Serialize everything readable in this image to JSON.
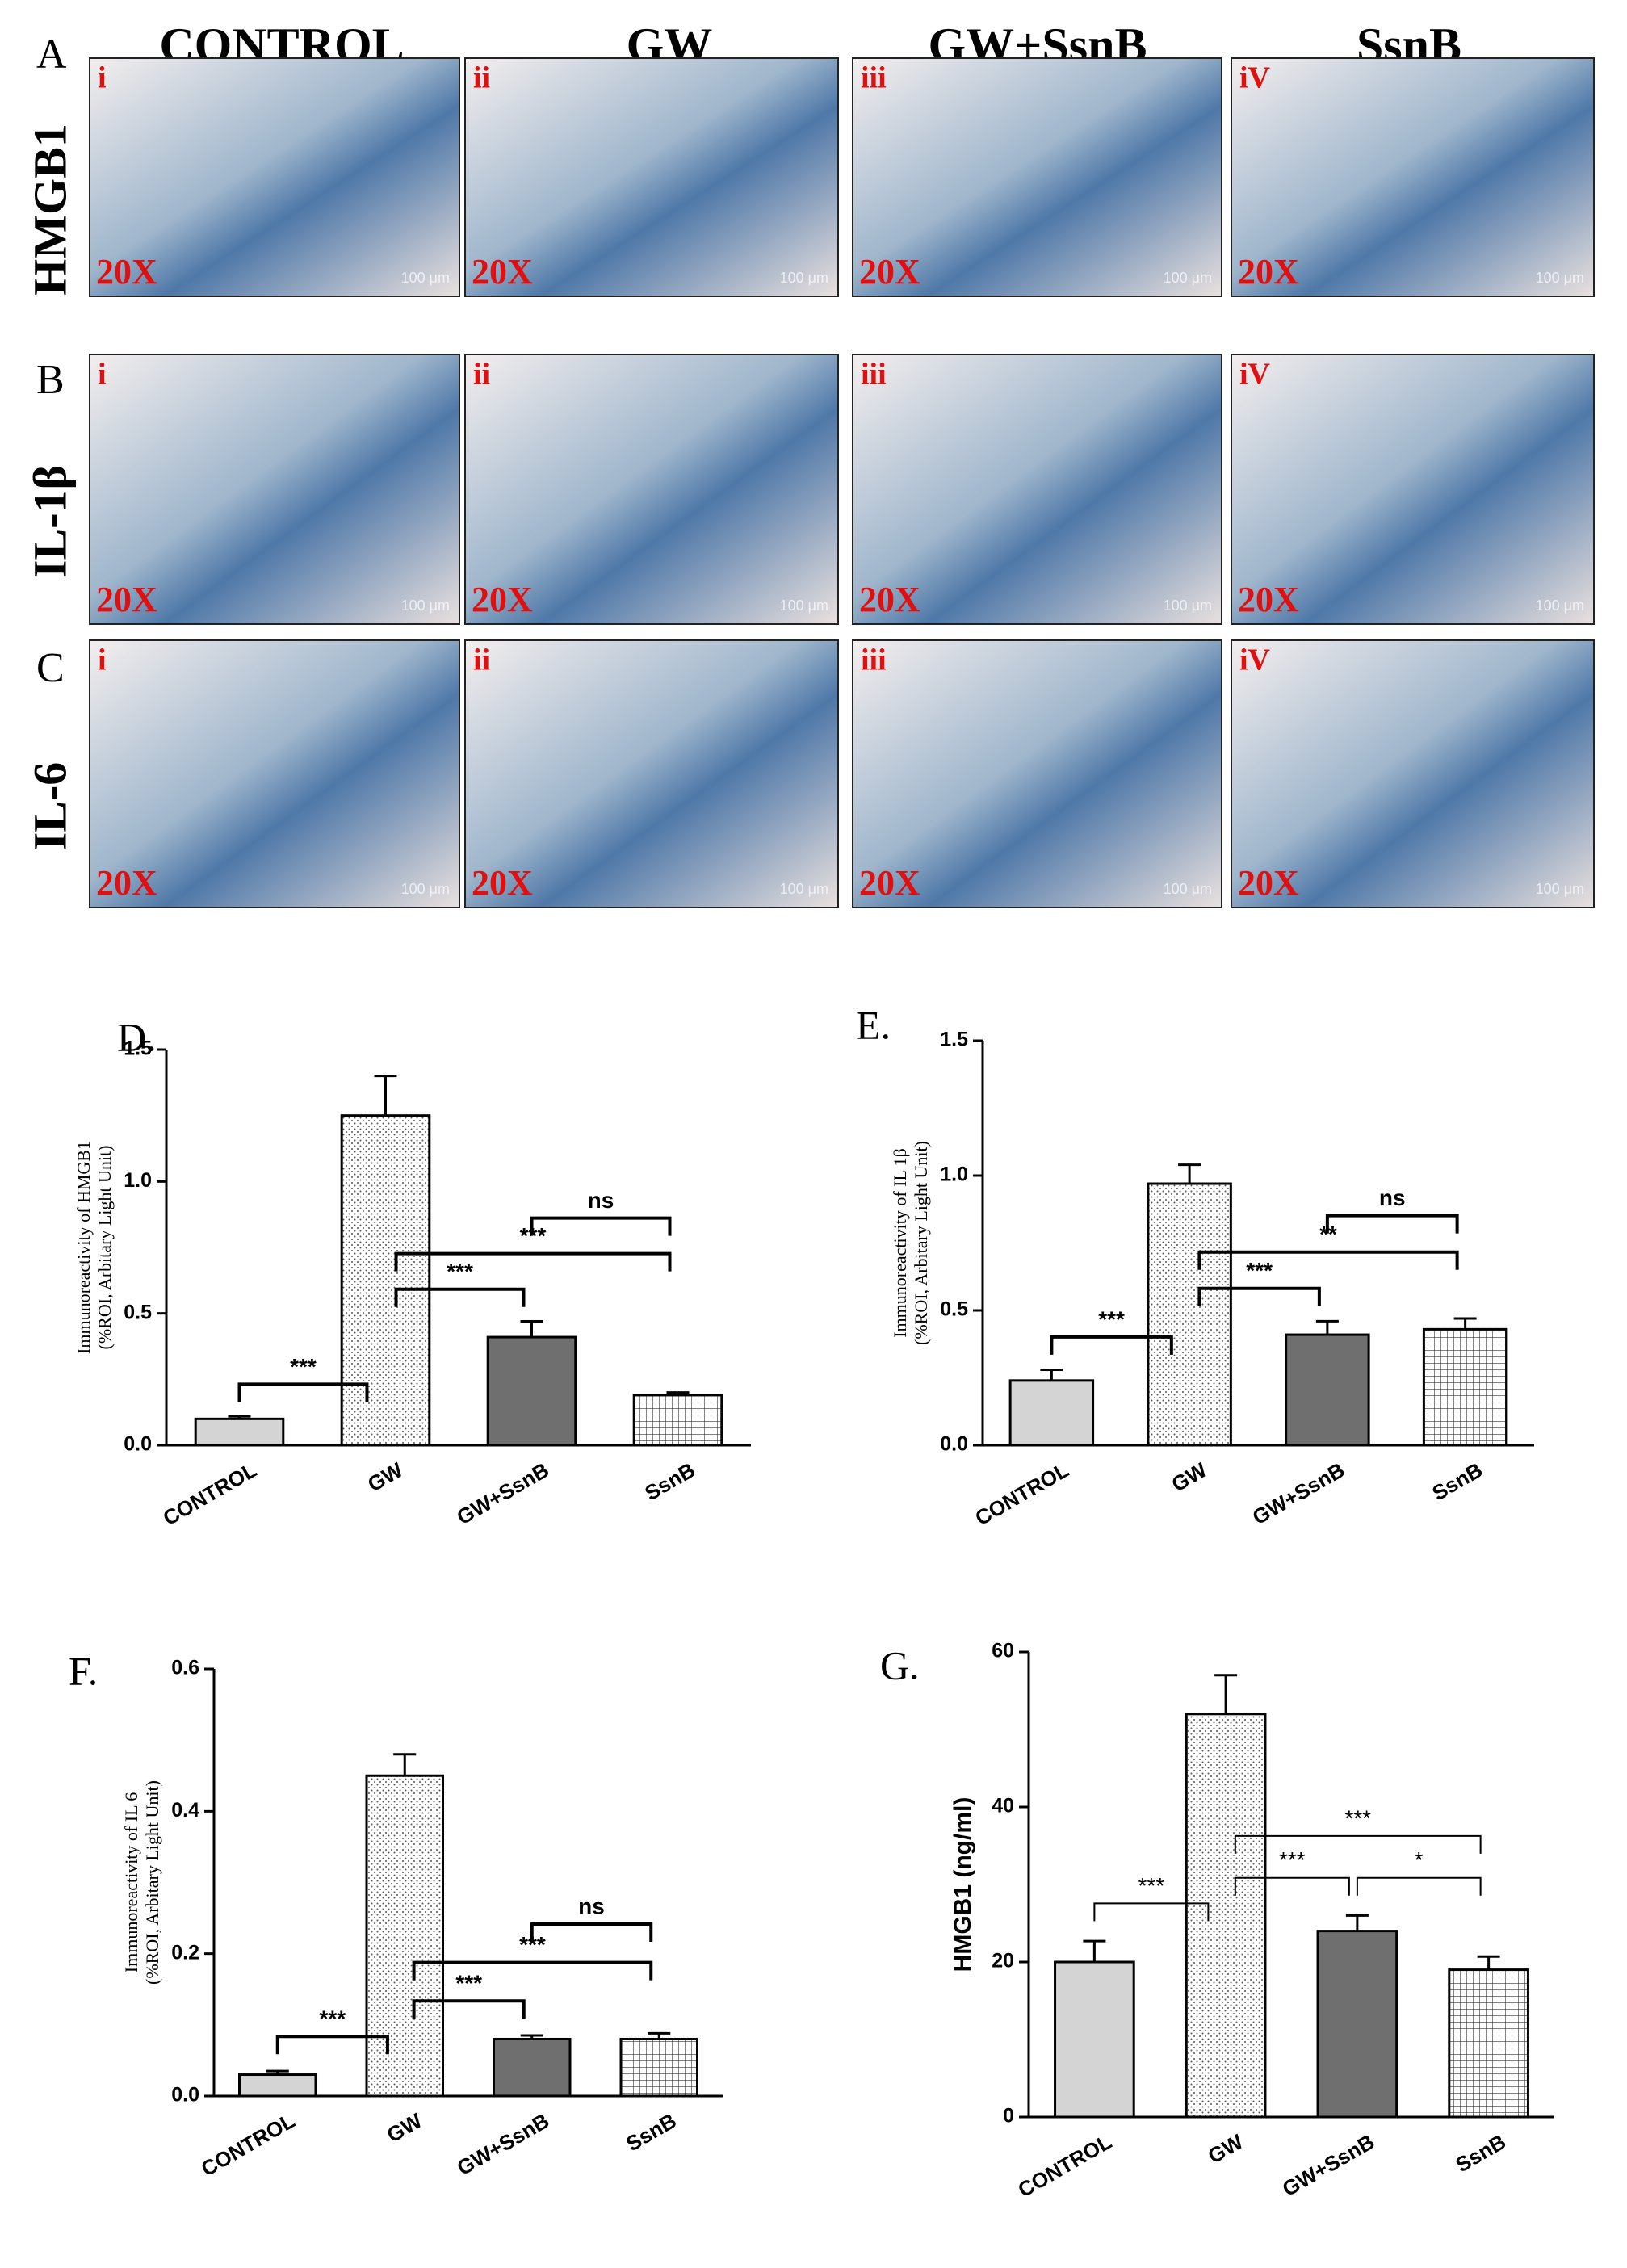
{
  "micrographs": {
    "panel_labels": [
      "A",
      "B",
      "C"
    ],
    "column_titles": [
      "CONTROL",
      "GW",
      "GW+SsnB",
      "SsnB"
    ],
    "row_titles": [
      "HMGB1",
      "IL-1β",
      "IL-6"
    ],
    "sublabels": [
      [
        "i",
        "ii",
        "iii",
        "iV"
      ],
      [
        "i",
        "ii",
        "iii",
        "iV"
      ],
      [
        "i",
        "ii",
        "iii",
        "iV"
      ]
    ],
    "magnification": "20X",
    "scale_bar": "100 μm"
  },
  "chart_data": [
    {
      "type": "bar",
      "panel_label": "D.",
      "ylabel": [
        "Immunoreactivity of HMGB1",
        "(%ROI, Arbitary Light Unit)"
      ],
      "categories": [
        "CONTROL",
        "GW",
        "GW+SsnB",
        "SsnB"
      ],
      "values": [
        0.1,
        1.25,
        0.41,
        0.19
      ],
      "errors": [
        0.01,
        0.15,
        0.06,
        0.01
      ],
      "colors": [
        "#d4d4d4",
        "#ffffff",
        "#6f6f6f",
        "#ffffff"
      ],
      "patterns": [
        "solid",
        "dots",
        "solid",
        "grid"
      ],
      "ylim": [
        0,
        1.5
      ],
      "yticks": [
        {
          "value": 0,
          "label": "0.0"
        },
        {
          "value": 0.5,
          "label": "0.5"
        },
        {
          "value": 1,
          "label": "1.0"
        },
        {
          "value": 1.5,
          "label": "1.5"
        }
      ],
      "significance": [
        {
          "pair": [
            0,
            1
          ],
          "label": "***"
        },
        {
          "pair": [
            1,
            2
          ],
          "label": "***"
        },
        {
          "pair": [
            1,
            3
          ],
          "label": "***"
        },
        {
          "pair": [
            2,
            3
          ],
          "label": "ns"
        }
      ]
    },
    {
      "type": "bar",
      "panel_label": "E.",
      "ylabel": [
        "Immunoreactivity of  IL 1β",
        "(%ROI, Arbitary Light Unit)"
      ],
      "categories": [
        "CONTROL",
        "GW",
        "GW+SsnB",
        "SsnB"
      ],
      "values": [
        0.24,
        0.97,
        0.41,
        0.43
      ],
      "errors": [
        0.04,
        0.07,
        0.05,
        0.04
      ],
      "colors": [
        "#d4d4d4",
        "#ffffff",
        "#6f6f6f",
        "#ffffff"
      ],
      "patterns": [
        "solid",
        "dots",
        "solid",
        "grid"
      ],
      "ylim": [
        0,
        1.5
      ],
      "yticks": [
        {
          "value": 0,
          "label": "0.0"
        },
        {
          "value": 0.5,
          "label": "0.5"
        },
        {
          "value": 1,
          "label": "1.0"
        },
        {
          "value": 1.5,
          "label": "1.5"
        }
      ],
      "significance": [
        {
          "pair": [
            0,
            1
          ],
          "label": "***"
        },
        {
          "pair": [
            1,
            2
          ],
          "label": "***"
        },
        {
          "pair": [
            1,
            3
          ],
          "label": "**"
        },
        {
          "pair": [
            2,
            3
          ],
          "label": "ns"
        }
      ]
    },
    {
      "type": "bar",
      "panel_label": "F.",
      "ylabel": [
        "Immunoreactivity of  IL 6",
        "(%ROI, Arbitary Light Unit)"
      ],
      "categories": [
        "CONTROL",
        "GW",
        "GW+SsnB",
        "SsnB"
      ],
      "values": [
        0.03,
        0.45,
        0.08,
        0.08
      ],
      "errors": [
        0.005,
        0.03,
        0.005,
        0.008
      ],
      "colors": [
        "#d4d4d4",
        "#ffffff",
        "#6f6f6f",
        "#ffffff"
      ],
      "patterns": [
        "solid",
        "dots",
        "solid",
        "grid"
      ],
      "ylim": [
        0,
        0.6
      ],
      "yticks": [
        {
          "value": 0,
          "label": "0.0"
        },
        0.2,
        0.4,
        0.6
      ],
      "significance": [
        {
          "pair": [
            0,
            1
          ],
          "label": "***"
        },
        {
          "pair": [
            1,
            2
          ],
          "label": "***"
        },
        {
          "pair": [
            1,
            3
          ],
          "label": "***"
        },
        {
          "pair": [
            2,
            3
          ],
          "label": "ns"
        }
      ]
    },
    {
      "type": "bar",
      "panel_label": "G.",
      "ylabel": [
        "HMGB1 (ng/ml)"
      ],
      "categories": [
        "CONTROL",
        "GW",
        "GW+SsnB",
        "SsnB"
      ],
      "values": [
        20,
        52,
        24,
        19
      ],
      "errors": [
        2.7,
        5,
        2,
        1.7
      ],
      "colors": [
        "#d4d4d4",
        "#ffffff",
        "#6f6f6f",
        "#ffffff"
      ],
      "patterns": [
        "solid",
        "dots",
        "solid",
        "grid"
      ],
      "ylim": [
        0,
        60
      ],
      "yticks": [
        0,
        20,
        40,
        60
      ],
      "significance": [
        {
          "pair": [
            0,
            1
          ],
          "label": "***"
        },
        {
          "pair": [
            1,
            2
          ],
          "label": "***"
        },
        {
          "pair": [
            2,
            3
          ],
          "label": "*"
        },
        {
          "pair": [
            1,
            3
          ],
          "label": "***"
        }
      ]
    }
  ]
}
